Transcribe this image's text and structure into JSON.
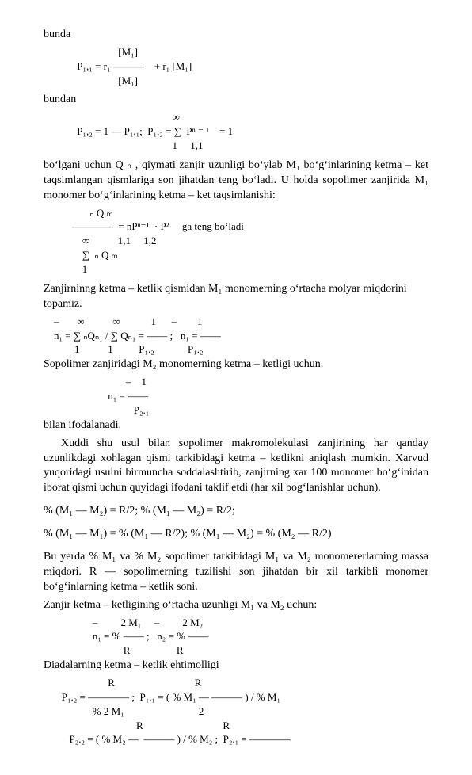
{
  "page": {
    "background_color": "#ffffff",
    "text_color": "#000000",
    "font_family": "Times New Roman",
    "base_fontsize_pt": 11
  },
  "blocks": {
    "b01": "bunda",
    "f01_l1": "                             [M₁]",
    "f01_l2": "             P₁,₁ = r₁ ———    + r₁ [M₁]",
    "f01_l3": "                             [M₁]",
    "b02": "bundan",
    "f02_l1": "                                                  ∞",
    "f02_l2": "             P₁,₂ = 1 — P₁,₁;  P₁,₂ = ∑  Pⁿ ⁻ ¹    = 1",
    "f02_l3": "                                                  1     1,1",
    "b03": "boʻlgani uchun Q ₙ , qiymati zanjir uzunligi boʻylab M₁ boʻgʻinlarining ketma – ket taqsimlangan qismlariga son jihatdan teng boʻladi. U holda sopolimer zanjirida M₁ monomer boʻgʻinlarining ketma – ket taqsimlanishi:",
    "f03_l1": "                  ₙ Q ₘ",
    "f03_l2": "           ————  = nPⁿ⁻¹  · P²     ga teng boʻladi",
    "f03_l3": "               ∞           1,1     1,2",
    "f03_l4": "               ∑  ₙ Q ₘ",
    "f03_l5": "               1",
    "b04": "Zanjirninng ketma – ketlik qismidan M₁ monomerning oʻrtacha molyar miqdorini topamiz.",
    "f04_l1": "    –       ∞           ∞            1      –        1",
    "f04_l2": "    n₁ = ∑ ₙQₙ₁ / ∑ Qₙ₁ = —— ;   n₁ = ——",
    "f04_l3": "            1           1          P₁.₂             P₁.₂",
    "b05": "Sopolimer zanjiridagi M₂ monomerning ketma – ketligi uchun.",
    "f05_l1": "                                –    1",
    "f05_l2": "                         n₁ = ——",
    "f05_l3": "                                   P₂.₁",
    "b06": "bilan ifodalanadi.",
    "b07": "Xuddi shu usul bilan sopolimer makromolekulasi zanjirining har qanday uzunlikdagi xohlagan qismi tarkibidagi ketma – ketlikni aniqlash mumkin. Xarvud yuqoridagi usulni birmuncha soddalashtirib, zanjirning xar 100 monomer boʻgʻinidan iborat qismi uchun quyidagi ifodani taklif etdi (har xil bogʻlanishlar uchun).",
    "b08": "% (M₁ — M₂) = R/2;             % (M₁ — M₂) = R/2;",
    "b09": "% (M₁ — M₁) = % (M₁ — R/2);       % (M₁ — M₂) = % (M₂ — R/2)",
    "b10": "Bu yerda % M₁ va % M₂ sopolimer tarkibidagi M₁ va M₂ monomererlarning massa miqdori.   R —  sopolimerning tuzilishi son jihatdan bir xil tarkibli monomer boʻgʻinlarning ketma – ketlik soni.",
    "b11": "Zanjir ketma – ketligining oʻrtacha uzunligi M₁ va M₂ uchun:",
    "f06_l1": "                   –         2 M₁     –         2 M₂",
    "f06_l2": "                   n₁ = % —— ;   n₂ = % ——",
    "f06_l3": "                               R                  R",
    "b12": "Diadalarning ketma – ketlik ehtimolligi",
    "f07_l1": "                         R                               R",
    "f07_l2": "       P₁.₂ = ———— ;  P₁.₁ = ( % M₁ — ——— ) / % M₁",
    "f07_l3": "                   % 2 M₁                             2",
    "f07_l4": "                                    R                               R",
    "f07_l5": "          P₂.₂ = ( % M₂ —  ——— ) / % M₂ ;  P₂.₁ = ————",
    "f07_l6": ""
  }
}
